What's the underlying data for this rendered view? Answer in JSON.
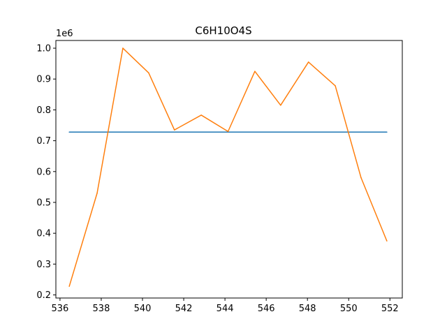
{
  "chart_data": {
    "type": "line",
    "title": "C6H10O4S",
    "xlabel": "",
    "ylabel": "",
    "y_offset_label": "1e6",
    "xlim": [
      535.8,
      552.6
    ],
    "ylim": [
      0.19,
      1.025
    ],
    "x_ticks": [
      536,
      538,
      540,
      542,
      544,
      546,
      548,
      550,
      552
    ],
    "x_tick_labels": [
      "536",
      "538",
      "540",
      "542",
      "544",
      "546",
      "548",
      "550",
      "552"
    ],
    "y_ticks": [
      0.2,
      0.3,
      0.4,
      0.5,
      0.6,
      0.7,
      0.8,
      0.9,
      1.0
    ],
    "y_tick_labels": [
      "0.2",
      "0.3",
      "0.4",
      "0.5",
      "0.6",
      "0.7",
      "0.8",
      "0.9",
      "1.0"
    ],
    "grid": false,
    "series": [
      {
        "color": "#1f77b4",
        "x": [
          536.45,
          551.85
        ],
        "y": [
          0.728,
          0.728
        ]
      },
      {
        "color": "#ff7f0e",
        "x": [
          536.45,
          537.8,
          539.05,
          540.3,
          541.55,
          542.85,
          544.15,
          545.45,
          546.7,
          548.05,
          549.35,
          550.6,
          551.85
        ],
        "y": [
          0.228,
          0.53,
          1.0,
          0.92,
          0.735,
          0.783,
          0.73,
          0.925,
          0.815,
          0.955,
          0.878,
          0.58,
          0.375
        ]
      }
    ]
  }
}
